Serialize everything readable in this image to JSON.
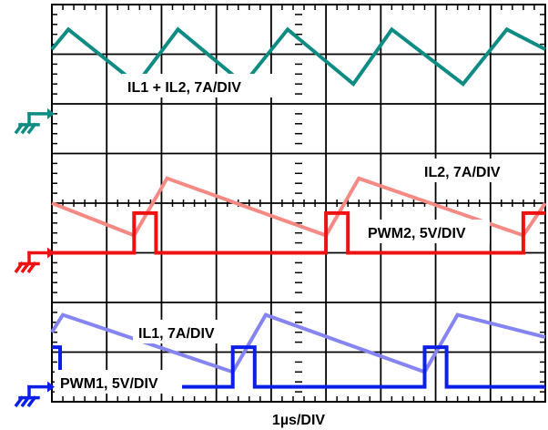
{
  "chart_data": {
    "type": "line",
    "title": "",
    "xlabel": "1µs/DIV",
    "grid": true,
    "divisions": {
      "x": 9,
      "y": 8
    },
    "colors": {
      "il_sum": "#0e8c84",
      "il2": "#f58a85",
      "pwm2": "#ee1111",
      "il1": "#8585f2",
      "pwm1": "#0b1fe8",
      "grid": "#000000"
    },
    "series": [
      {
        "name": "IL1 + IL2, 7A/DIV",
        "unit_scale": "7A/DIV",
        "x": [
          0,
          0.3,
          1.55,
          2.3,
          3.5,
          4.3,
          5.5,
          6.2,
          7.5,
          8.3,
          9.0
        ],
        "y": [
          7.1,
          7.5,
          6.4,
          7.5,
          6.4,
          7.5,
          6.4,
          7.5,
          6.4,
          7.5,
          7.1
        ]
      },
      {
        "name": "IL2, 7A/DIV",
        "unit_scale": "7A/DIV",
        "x": [
          0,
          1.5,
          2.1,
          5.0,
          5.6,
          8.6,
          9.0
        ],
        "y": [
          4.0,
          3.35,
          4.5,
          3.35,
          4.5,
          3.35,
          4.0
        ]
      },
      {
        "name": "PWM2, 5V/DIV",
        "unit_scale": "5V/DIV",
        "x": [
          0,
          1.5,
          1.5,
          1.9,
          1.9,
          5.0,
          5.0,
          5.4,
          5.4,
          8.6,
          8.6,
          9.0
        ],
        "y": [
          3.0,
          3.0,
          3.8,
          3.8,
          3.0,
          3.0,
          3.8,
          3.8,
          3.0,
          3.0,
          3.8,
          3.8
        ]
      },
      {
        "name": "IL1, 7A/DIV",
        "unit_scale": "7A/DIV",
        "x": [
          0,
          0.2,
          3.3,
          3.9,
          6.8,
          7.4,
          9.0
        ],
        "y": [
          1.4,
          1.75,
          0.6,
          1.75,
          0.6,
          1.75,
          1.3
        ]
      },
      {
        "name": "PWM1, 5V/DIV",
        "unit_scale": "5V/DIV",
        "x": [
          0,
          0.15,
          0.15,
          3.3,
          3.3,
          3.7,
          3.7,
          6.8,
          6.8,
          7.2,
          7.2,
          9.0
        ],
        "y": [
          1.1,
          1.1,
          0.3,
          0.3,
          1.1,
          1.1,
          0.3,
          0.3,
          1.1,
          1.1,
          0.3,
          0.3
        ]
      }
    ],
    "annotations": [
      "IL1 + IL2, 7A/DIV",
      "IL2, 7A/DIV",
      "PWM2, 5V/DIV",
      "IL1, 7A/DIV",
      "PWM1, 5V/DIV"
    ],
    "ground_markers": [
      {
        "color": "#0e8c84",
        "level": 5.8
      },
      {
        "color": "#ee1111",
        "level": 3.0
      },
      {
        "color": "#0b1fe8",
        "level": 0.3
      }
    ]
  }
}
